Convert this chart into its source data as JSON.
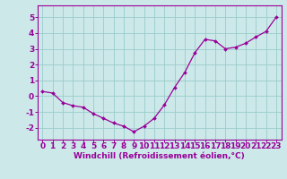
{
  "x": [
    0,
    1,
    2,
    3,
    4,
    5,
    6,
    7,
    8,
    9,
    10,
    11,
    12,
    13,
    14,
    15,
    16,
    17,
    18,
    19,
    20,
    21,
    22,
    23
  ],
  "y": [
    0.3,
    0.2,
    -0.4,
    -0.6,
    -0.7,
    -1.1,
    -1.4,
    -1.7,
    -1.9,
    -2.25,
    -1.9,
    -1.4,
    -0.55,
    0.55,
    1.5,
    2.75,
    3.6,
    3.5,
    3.0,
    3.1,
    3.35,
    3.75,
    4.1,
    5.0
  ],
  "line_color": "#990099",
  "marker": "D",
  "marker_size": 2.0,
  "linewidth": 0.9,
  "background_color": "#cce8e8",
  "grid_color": "#99cccc",
  "tick_color": "#990099",
  "label_color": "#990099",
  "xlabel": "Windchill (Refroidissement éolien,°C)",
  "xlim": [
    -0.5,
    23.5
  ],
  "ylim": [
    -2.75,
    5.75
  ],
  "yticks": [
    -2,
    -1,
    0,
    1,
    2,
    3,
    4,
    5
  ],
  "xticks": [
    0,
    1,
    2,
    3,
    4,
    5,
    6,
    7,
    8,
    9,
    10,
    11,
    12,
    13,
    14,
    15,
    16,
    17,
    18,
    19,
    20,
    21,
    22,
    23
  ],
  "xlabel_fontsize": 6.5,
  "tick_fontsize": 6.5
}
